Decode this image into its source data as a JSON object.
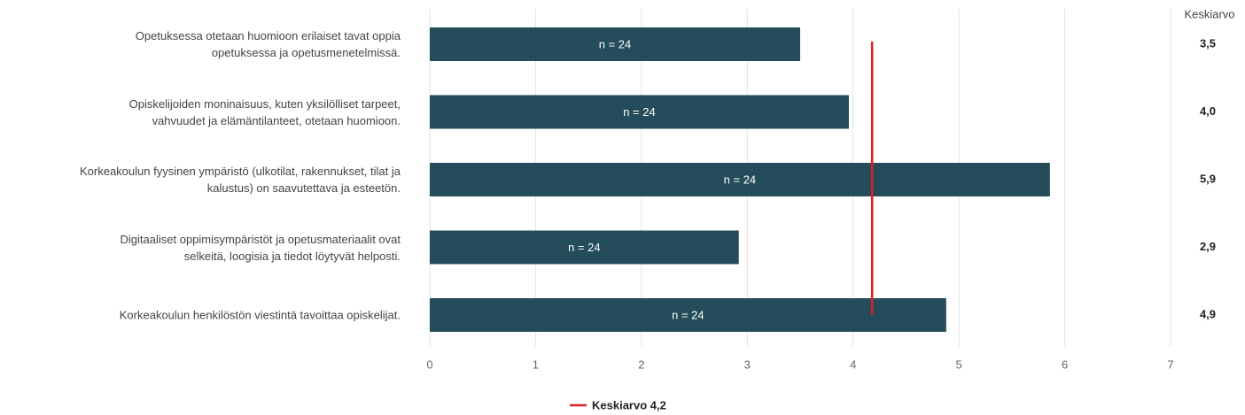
{
  "chart_data": {
    "type": "hbar",
    "categories": [
      "Opetuksessa otetaan huomioon erilaiset tavat oppia\nopetuksessa ja opetusmenetelmissä.",
      "Opiskelijoiden moninaisuus, kuten yksilölliset tarpeet,\nvahvuudet ja elämäntilanteet, otetaan huomioon.",
      "Korkeakoulun fyysinen ympäristö (ulkotilat, rakennukset, tilat ja\nkalustus) on saavutettava ja esteetön.",
      "Digitaaliset oppimisympäristöt ja opetusmateriaalit ovat\nselkeitä, loogisia ja tiedot löytyvät helposti.",
      "Korkeakoulun henkilöstön viestintä tavoittaa opiskelijat."
    ],
    "values": [
      3.5,
      3.96,
      5.86,
      2.92,
      4.88
    ],
    "value_labels": [
      "3,5",
      "4,0",
      "5,9",
      "2,9",
      "4,9"
    ],
    "value_labels_title": "Keskiarvo",
    "bar_labels": [
      "n = 24",
      "n = 24",
      "n = 24",
      "n = 24",
      "n = 24"
    ],
    "color": "#244c5a",
    "xlim": [
      0,
      7
    ],
    "xticks": [
      0,
      1,
      2,
      3,
      4,
      5,
      6,
      7
    ],
    "grid": true,
    "mean_line": {
      "value": 4.18,
      "label": "Keskiarvo 4,2",
      "color": "#e0201f"
    }
  }
}
